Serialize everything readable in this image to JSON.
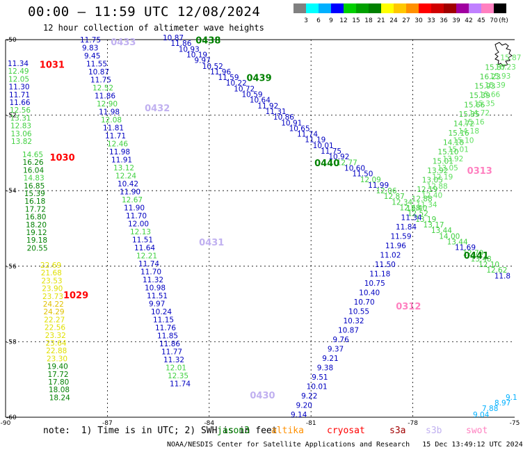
{
  "header": {
    "title": "00:00 – 11:59 UTC 12/08/2024",
    "subtitle": "12 hour collection of altimeter wave heights"
  },
  "colorbar": {
    "unit": "(ft)",
    "ticks": [
      "3",
      "6",
      "9",
      "12",
      "15",
      "18",
      "21",
      "24",
      "27",
      "30",
      "33",
      "36",
      "39",
      "42",
      "45",
      "70"
    ],
    "colors": [
      "#808080",
      "#00ffff",
      "#00b0ff",
      "#0000ff",
      "#00d000",
      "#00a000",
      "#008000",
      "#ffff00",
      "#ffc800",
      "#ff9000",
      "#ff0000",
      "#d00000",
      "#a00000",
      "#a000a0",
      "#c080ff",
      "#ff80c0",
      "#000000"
    ]
  },
  "map": {
    "lon_ticks": [
      "-90",
      "-87",
      "-84",
      "-81",
      "-78",
      "-75"
    ],
    "lat_ticks": [
      "-50",
      "-52",
      "-54",
      "-56",
      "-58",
      "-60"
    ],
    "pass_labels": [
      {
        "text": "1031",
        "lon": -89.0,
        "lat": -50.75,
        "color": "#ff0000"
      },
      {
        "text": "1030",
        "lon": -88.7,
        "lat": -53.2,
        "color": "#ff0000"
      },
      {
        "text": "1029",
        "lon": -88.3,
        "lat": -56.85,
        "color": "#ff0000"
      },
      {
        "text": "0433",
        "lon": -86.9,
        "lat": -50.15,
        "color": "#c0b0f0"
      },
      {
        "text": "0432",
        "lon": -85.9,
        "lat": -51.9,
        "color": "#c0b0f0"
      },
      {
        "text": "0431",
        "lon": -84.3,
        "lat": -55.45,
        "color": "#c0b0f0"
      },
      {
        "text": "0430",
        "lon": -82.8,
        "lat": -59.5,
        "color": "#c0b0f0"
      },
      {
        "text": "0438",
        "lon": -84.4,
        "lat": -50.1,
        "color": "#008000"
      },
      {
        "text": "0439",
        "lon": -82.9,
        "lat": -51.1,
        "color": "#008000"
      },
      {
        "text": "0440",
        "lon": -80.9,
        "lat": -53.35,
        "color": "#008000"
      },
      {
        "text": "0441",
        "lon": -76.5,
        "lat": -55.8,
        "color": "#008000"
      },
      {
        "text": "0313",
        "lon": -76.4,
        "lat": -53.55,
        "color": "#ff80c0"
      },
      {
        "text": "0312",
        "lon": -78.5,
        "lat": -57.15,
        "color": "#ff80c0"
      }
    ],
    "tracks": [
      {
        "color_first": "#0000ff",
        "values": [
          "11.34"
        ],
        "lon": -89.8,
        "lat": -50.75,
        "dir": 1
      },
      {
        "name": "c1031",
        "points": [
          {
            "v": "11.34",
            "c": "#0000c0"
          },
          {
            "v": "12.49",
            "c": "#40d040"
          },
          {
            "v": "12.05",
            "c": "#40d040"
          },
          {
            "v": "11.30",
            "c": "#0000c0"
          },
          {
            "v": "11.71",
            "c": "#0000c0"
          },
          {
            "v": "11.66",
            "c": "#0000c0"
          },
          {
            "v": "12.56",
            "c": "#40d040"
          },
          {
            "v": "13.31",
            "c": "#40d040"
          },
          {
            "v": "12.83",
            "c": "#40d040"
          },
          {
            "v": "13.06",
            "c": "#40d040"
          },
          {
            "v": "13.82",
            "c": "#40d040"
          }
        ]
      }
    ],
    "col1031": [
      {
        "v": "11.34",
        "c": "#0000c0"
      },
      {
        "v": "12.49",
        "c": "#40d040"
      },
      {
        "v": "12.05",
        "c": "#40d040"
      },
      {
        "v": "11.30",
        "c": "#0000c0"
      },
      {
        "v": "11.71",
        "c": "#0000c0"
      },
      {
        "v": "11.66",
        "c": "#0000c0"
      },
      {
        "v": "12.56",
        "c": "#40d040"
      },
      {
        "v": "13.31",
        "c": "#40d040"
      },
      {
        "v": "12.83",
        "c": "#40d040"
      },
      {
        "v": "13.06",
        "c": "#40d040"
      },
      {
        "v": "13.82",
        "c": "#40d040"
      }
    ],
    "col1030": [
      {
        "v": "14.65",
        "c": "#40d040"
      },
      {
        "v": "16.26",
        "c": "#008000"
      },
      {
        "v": "16.04",
        "c": "#008000"
      },
      {
        "v": "14.83",
        "c": "#40d040"
      },
      {
        "v": "16.85",
        "c": "#008000"
      },
      {
        "v": "15.39",
        "c": "#008000"
      },
      {
        "v": "16.18",
        "c": "#008000"
      },
      {
        "v": "17.72",
        "c": "#008000"
      },
      {
        "v": "16.80",
        "c": "#008000"
      },
      {
        "v": "18.20",
        "c": "#008000"
      },
      {
        "v": "19.12",
        "c": "#008000"
      },
      {
        "v": "19.18",
        "c": "#008000"
      },
      {
        "v": "20.55",
        "c": "#008000"
      }
    ],
    "col1029": [
      {
        "v": "22.69",
        "c": "#e0e000"
      },
      {
        "v": "21.68",
        "c": "#e0e000"
      },
      {
        "v": "23.53",
        "c": "#e0e000"
      },
      {
        "v": "23.90",
        "c": "#e0e000"
      },
      {
        "v": "23.73",
        "c": "#e0e000"
      },
      {
        "v": "24.22",
        "c": "#e0c000"
      },
      {
        "v": "24.29",
        "c": "#e0c000"
      },
      {
        "v": "22.27",
        "c": "#e0e000"
      },
      {
        "v": "22.56",
        "c": "#e0e000"
      },
      {
        "v": "23.32",
        "c": "#e0e000"
      },
      {
        "v": "23.64",
        "c": "#e0e000"
      },
      {
        "v": "22.88",
        "c": "#e0e000"
      },
      {
        "v": "23.30",
        "c": "#e0e000"
      },
      {
        "v": "19.40",
        "c": "#008000"
      },
      {
        "v": "17.72",
        "c": "#008000"
      },
      {
        "v": "17.80",
        "c": "#008000"
      },
      {
        "v": "18.08",
        "c": "#008000"
      },
      {
        "v": "18.24",
        "c": "#008000"
      }
    ],
    "diag0433": [
      {
        "v": "11.75",
        "c": "#0000c0"
      },
      {
        "v": "9.83",
        "c": "#0000c0"
      },
      {
        "v": "9.45",
        "c": "#0000c0"
      },
      {
        "v": "11.55",
        "c": "#0000c0"
      },
      {
        "v": "10.87",
        "c": "#0000c0"
      },
      {
        "v": "11.75",
        "c": "#0000c0"
      },
      {
        "v": "12.52",
        "c": "#40d040"
      },
      {
        "v": "11.86",
        "c": "#0000c0"
      },
      {
        "v": "12.90",
        "c": "#40d040"
      },
      {
        "v": "11.98",
        "c": "#0000c0"
      },
      {
        "v": "12.08",
        "c": "#40d040"
      },
      {
        "v": "11.81",
        "c": "#0000c0"
      },
      {
        "v": "11.71",
        "c": "#0000c0"
      },
      {
        "v": "12.46",
        "c": "#40d040"
      },
      {
        "v": "11.98",
        "c": "#0000c0"
      },
      {
        "v": "11.91",
        "c": "#0000c0"
      },
      {
        "v": "13.12",
        "c": "#40d040"
      },
      {
        "v": "12.24",
        "c": "#40d040"
      },
      {
        "v": "10.42",
        "c": "#0000c0"
      },
      {
        "v": "11.90",
        "c": "#0000c0"
      },
      {
        "v": "12.67",
        "c": "#40d040"
      },
      {
        "v": "11.90",
        "c": "#0000c0"
      },
      {
        "v": "11.70",
        "c": "#0000c0"
      },
      {
        "v": "12.00",
        "c": "#0000c0"
      },
      {
        "v": "12.13",
        "c": "#40d040"
      },
      {
        "v": "11.51",
        "c": "#0000c0"
      },
      {
        "v": "11.64",
        "c": "#0000c0"
      },
      {
        "v": "12.21",
        "c": "#40d040"
      },
      {
        "v": "11.74",
        "c": "#0000c0"
      },
      {
        "v": "11.70",
        "c": "#0000c0"
      },
      {
        "v": "11.32",
        "c": "#0000c0"
      },
      {
        "v": "10.98",
        "c": "#0000c0"
      },
      {
        "v": "11.51",
        "c": "#0000c0"
      },
      {
        "v": "9.97",
        "c": "#0000c0"
      },
      {
        "v": "10.24",
        "c": "#0000c0"
      },
      {
        "v": "11.15",
        "c": "#0000c0"
      },
      {
        "v": "11.76",
        "c": "#0000c0"
      },
      {
        "v": "11.85",
        "c": "#0000c0"
      },
      {
        "v": "11.86",
        "c": "#0000c0"
      },
      {
        "v": "11.77",
        "c": "#0000c0"
      },
      {
        "v": "11.32",
        "c": "#0000c0"
      },
      {
        "v": "12.01",
        "c": "#40d040"
      },
      {
        "v": "12.35",
        "c": "#40d040"
      },
      {
        "v": "11.74",
        "c": "#0000c0"
      }
    ],
    "diag0438": [
      {
        "v": "10.87",
        "c": "#0000c0"
      },
      {
        "v": "11.86",
        "c": "#0000c0"
      },
      {
        "v": "10.93",
        "c": "#0000c0"
      },
      {
        "v": "10.19",
        "c": "#0000c0"
      },
      {
        "v": "9.97",
        "c": "#0000c0"
      },
      {
        "v": "10.52",
        "c": "#0000c0"
      },
      {
        "v": "11.96",
        "c": "#0000c0"
      },
      {
        "v": "11.59",
        "c": "#0000c0"
      },
      {
        "v": "10.22",
        "c": "#0000c0"
      },
      {
        "v": "10.72",
        "c": "#0000c0"
      },
      {
        "v": "10.59",
        "c": "#0000c0"
      },
      {
        "v": "10.64",
        "c": "#0000c0"
      },
      {
        "v": "11.92",
        "c": "#0000c0"
      },
      {
        "v": "11.31",
        "c": "#0000c0"
      },
      {
        "v": "10.86",
        "c": "#0000c0"
      },
      {
        "v": "10.91",
        "c": "#0000c0"
      },
      {
        "v": "10.65",
        "c": "#0000c0"
      },
      {
        "v": "11.74",
        "c": "#0000c0"
      },
      {
        "v": "11.19",
        "c": "#0000c0"
      },
      {
        "v": "10.01",
        "c": "#0000c0"
      },
      {
        "v": "11.75",
        "c": "#0000c0"
      },
      {
        "v": "10.92",
        "c": "#0000c0"
      },
      {
        "v": "12.77",
        "c": "#40d040"
      },
      {
        "v": "10.60",
        "c": "#0000c0"
      },
      {
        "v": "11.50",
        "c": "#0000c0"
      },
      {
        "v": "12.09",
        "c": "#40d040"
      },
      {
        "v": "11.99",
        "c": "#0000c0"
      },
      {
        "v": "12.06",
        "c": "#40d040"
      },
      {
        "v": "12.87",
        "c": "#40d040"
      },
      {
        "v": "12.34",
        "c": "#40d040"
      },
      {
        "v": "12.68",
        "c": "#40d040"
      },
      {
        "v": "12.52",
        "c": "#40d040"
      },
      {
        "v": "13.19",
        "c": "#40d040"
      },
      {
        "v": "13.17",
        "c": "#40d040"
      },
      {
        "v": "13.44",
        "c": "#40d040"
      },
      {
        "v": "14.00",
        "c": "#40d040"
      },
      {
        "v": "13.44",
        "c": "#40d040"
      },
      {
        "v": "11.69",
        "c": "#0000c0"
      },
      {
        "v": "12.79",
        "c": "#40d040"
      },
      {
        "v": "13.48",
        "c": "#40d040"
      },
      {
        "v": "12.10",
        "c": "#40d040"
      },
      {
        "v": "12.62",
        "c": "#40d040"
      },
      {
        "v": "11.8",
        "c": "#0000c0"
      }
    ],
    "asc0312": [
      {
        "v": "9.14",
        "c": "#0000c0"
      },
      {
        "v": "9.20",
        "c": "#0000c0"
      },
      {
        "v": "9.22",
        "c": "#0000c0"
      },
      {
        "v": "10.01",
        "c": "#0000c0"
      },
      {
        "v": "9.51",
        "c": "#0000c0"
      },
      {
        "v": "9.38",
        "c": "#0000c0"
      },
      {
        "v": "9.21",
        "c": "#0000c0"
      },
      {
        "v": "9.37",
        "c": "#0000c0"
      },
      {
        "v": "9.76",
        "c": "#0000c0"
      },
      {
        "v": "10.87",
        "c": "#0000c0"
      },
      {
        "v": "10.32",
        "c": "#0000c0"
      },
      {
        "v": "10.55",
        "c": "#0000c0"
      },
      {
        "v": "10.70",
        "c": "#0000c0"
      },
      {
        "v": "10.40",
        "c": "#0000c0"
      },
      {
        "v": "10.75",
        "c": "#0000c0"
      },
      {
        "v": "11.18",
        "c": "#0000c0"
      },
      {
        "v": "11.50",
        "c": "#0000c0"
      },
      {
        "v": "11.02",
        "c": "#0000c0"
      },
      {
        "v": "11.96",
        "c": "#0000c0"
      },
      {
        "v": "11.59",
        "c": "#0000c0"
      },
      {
        "v": "11.84",
        "c": "#0000c0"
      },
      {
        "v": "11.34",
        "c": "#0000c0"
      },
      {
        "v": "12.40",
        "c": "#40d040"
      },
      {
        "v": "12.88",
        "c": "#40d040"
      },
      {
        "v": "12.19",
        "c": "#40d040"
      },
      {
        "v": "13.05",
        "c": "#40d040"
      },
      {
        "v": "13.92",
        "c": "#40d040"
      },
      {
        "v": "15.01",
        "c": "#40d040"
      },
      {
        "v": "15.10",
        "c": "#40d040"
      },
      {
        "v": "14.18",
        "c": "#40d040"
      },
      {
        "v": "15.16",
        "c": "#40d040"
      },
      {
        "v": "14.72",
        "c": "#40d040"
      },
      {
        "v": "15.35",
        "c": "#40d040"
      },
      {
        "v": "15.66",
        "c": "#40d040"
      },
      {
        "v": "15.39",
        "c": "#40d040"
      },
      {
        "v": "15.93",
        "c": "#40d040"
      },
      {
        "v": "16.23",
        "c": "#40d040"
      },
      {
        "v": "15.87",
        "c": "#40d040"
      }
    ],
    "swot_vals": [
      {
        "v": "9.04",
        "c": "#00b0ff"
      },
      {
        "v": "7.88",
        "c": "#00b0ff"
      },
      {
        "v": "8.97",
        "c": "#00b0ff"
      },
      {
        "v": "9.1",
        "c": "#00b0ff"
      }
    ]
  },
  "footer": {
    "note": "note:  1) Time is in UTC; 2) SWH is in feet",
    "satellites": [
      {
        "name": "jason3",
        "color": "#008000"
      },
      {
        "name": "altika",
        "color": "#ff9000"
      },
      {
        "name": "cryosat",
        "color": "#ff0000"
      },
      {
        "name": "s3a",
        "color": "#a00000"
      },
      {
        "name": "s3b",
        "color": "#c0b0f0"
      },
      {
        "name": "swot",
        "color": "#ff80c0"
      }
    ],
    "credit": "NOAA/NESDIS Center for Satellite Applications and Research   15 Dec 13:49:12 UTC 2024"
  }
}
